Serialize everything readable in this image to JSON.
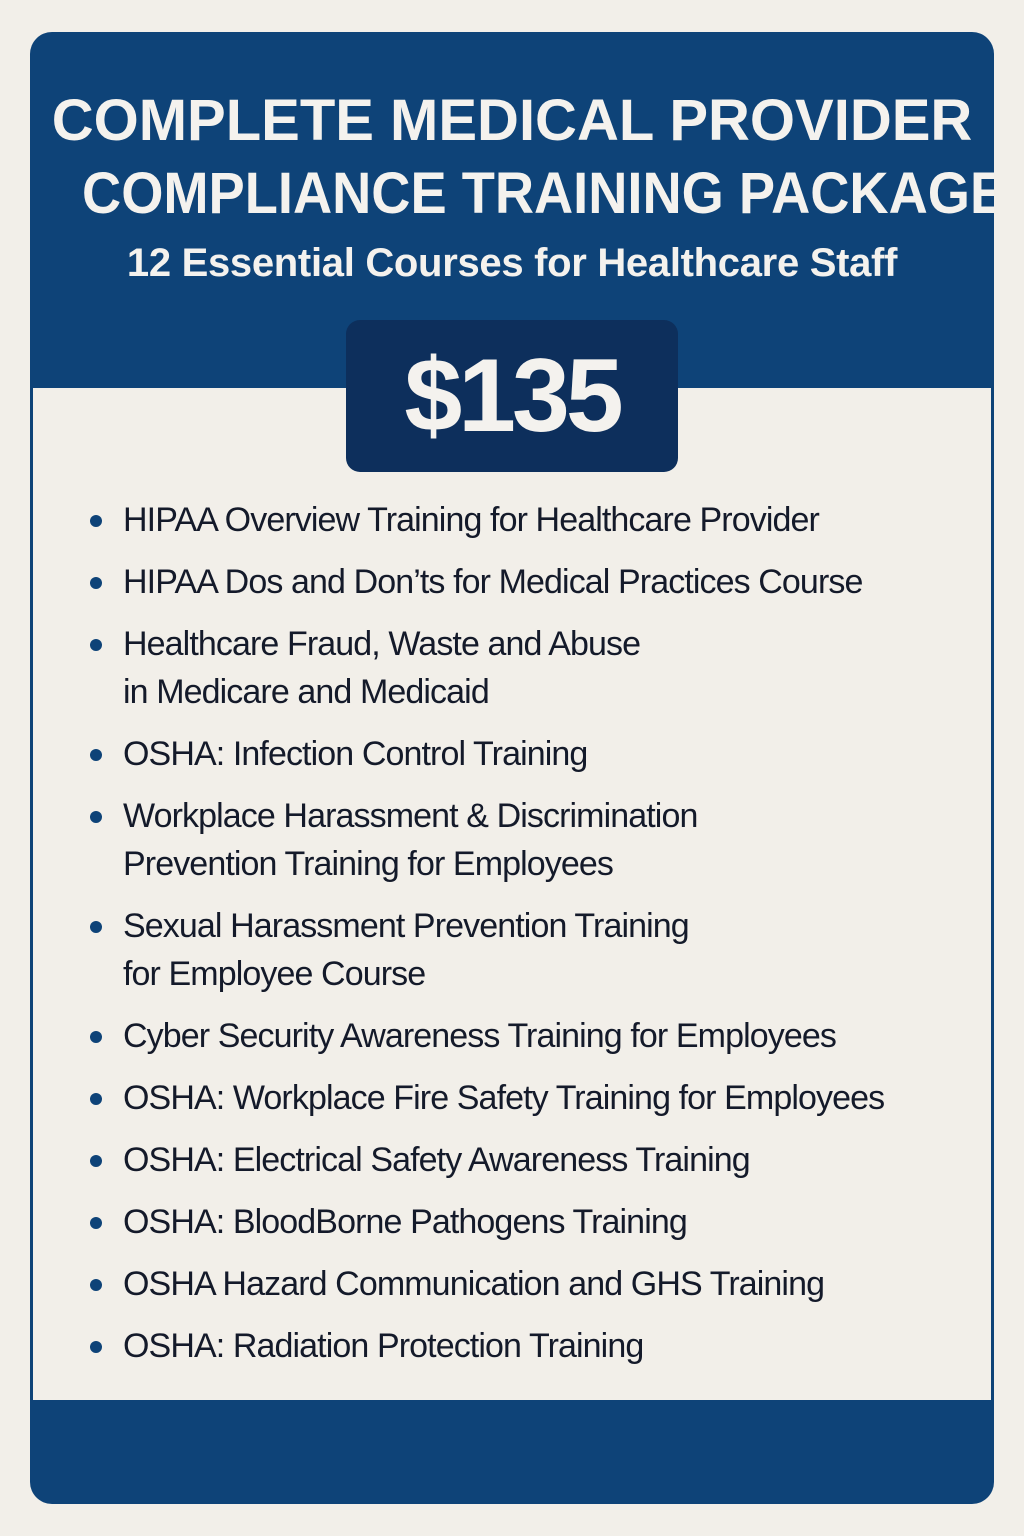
{
  "header": {
    "title_line1": "COMPLETE MEDICAL PROVIDER",
    "title_line2": "COMPLIANCE TRAINING PACKAGE",
    "subtitle": "12 Essential Courses for Healthcare Staff"
  },
  "price": "$135",
  "colors": {
    "brand_blue": "#0e4378",
    "price_box": "#0d2f5c",
    "background": "#f2efe9",
    "text": "#141a2a"
  },
  "courses": [
    {
      "line1": "HIPAA Overview Training for Healthcare Provider",
      "line2": ""
    },
    {
      "line1": "HIPAA Dos and Don’ts for Medical Practices Course",
      "line2": ""
    },
    {
      "line1": "Healthcare Fraud, Waste and Abuse",
      "line2": "in Medicare and Medicaid"
    },
    {
      "line1": "OSHA: Infection Control Training",
      "line2": ""
    },
    {
      "line1": "Workplace Harassment & Discrimination",
      "line2": "Prevention Training for Employees"
    },
    {
      "line1": "Sexual Harassment Prevention Training",
      "line2": "for Employee Course"
    },
    {
      "line1": "Cyber Security Awareness Training for Employees",
      "line2": ""
    },
    {
      "line1": "OSHA: Workplace Fire Safety Training for Employees",
      "line2": ""
    },
    {
      "line1": "OSHA: Electrical Safety Awareness Training",
      "line2": ""
    },
    {
      "line1": "OSHA: BloodBorne Pathogens Training",
      "line2": ""
    },
    {
      "line1": "OSHA Hazard Communication and GHS Training",
      "line2": ""
    },
    {
      "line1": "OSHA: Radiation Protection Training",
      "line2": ""
    }
  ]
}
